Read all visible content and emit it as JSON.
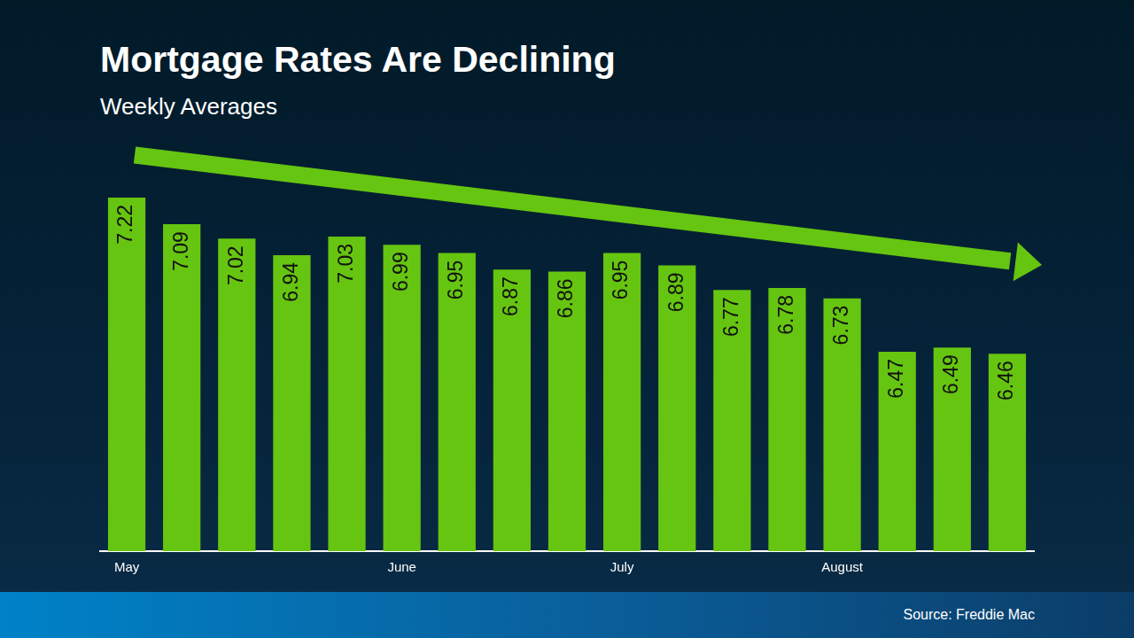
{
  "chart_data": {
    "type": "bar",
    "title": "Mortgage Rates Are Declining",
    "subtitle": "Weekly Averages",
    "source": "Source: Freddie Mac",
    "categories": [
      "May",
      null,
      null,
      null,
      null,
      "June",
      null,
      null,
      null,
      "July",
      null,
      null,
      null,
      "August",
      null,
      null,
      null
    ],
    "values": [
      7.22,
      7.09,
      7.02,
      6.94,
      7.03,
      6.99,
      6.95,
      6.87,
      6.86,
      6.95,
      6.89,
      6.77,
      6.78,
      6.73,
      6.47,
      6.49,
      6.46
    ],
    "color": "#66c510",
    "ylim": [
      5.5,
      7.5
    ],
    "grid": false,
    "data_labels": true,
    "tick_labels": "x"
  }
}
